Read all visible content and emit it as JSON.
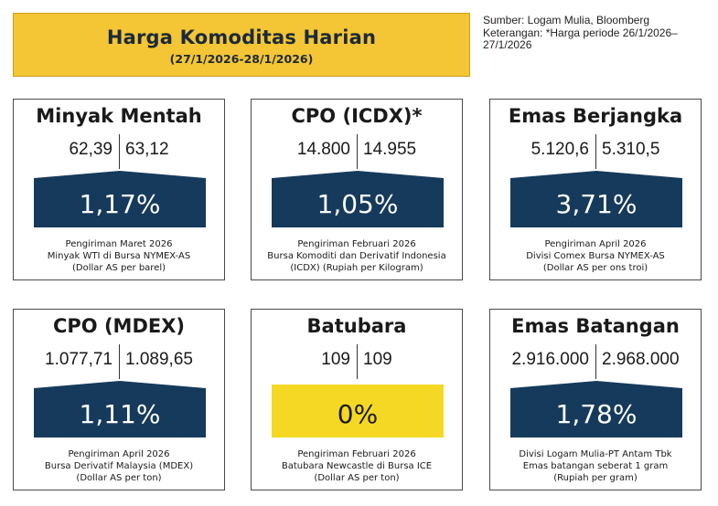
{
  "header": {
    "title": "Harga Komoditas Harian",
    "date_range": "(27/1/2026-28/1/2026)"
  },
  "source": {
    "line1": "Sumber: Logam Mulia, Bloomberg",
    "line2": "Keterangan: *Harga periode 26/1/2026–",
    "line3": "27/1/2026"
  },
  "colors": {
    "title_bg": "#f4c534",
    "badge_navy": "#163a5c",
    "badge_yellow": "#f5d823"
  },
  "cards": [
    {
      "name": "Minyak Mentah",
      "price_prev": "62,39",
      "price_curr": "63,12",
      "change": "1,17%",
      "desc1": "Pengiriman Maret 2026",
      "desc2": "Minyak WTI di Bursa NYMEX-AS",
      "desc3": "(Dollar AS per barel)"
    },
    {
      "name": "CPO (ICDX)*",
      "price_prev": "14.800",
      "price_curr": "14.955",
      "change": "1,05%",
      "desc1": "Pengiriman Februari 2026",
      "desc2": "Bursa Komoditi dan Derivatif Indonesia",
      "desc3": "(ICDX) (Rupiah per Kilogram)"
    },
    {
      "name": "Emas Berjangka",
      "price_prev": "5.120,6",
      "price_curr": "5.310,5",
      "change": "3,71%",
      "desc1": "Pengiriman April 2026",
      "desc2": "Divisi Comex Bursa NYMEX-AS",
      "desc3": "(Dollar AS per ons troi)"
    },
    {
      "name": "CPO (MDEX)",
      "price_prev": "1.077,71",
      "price_curr": "1.089,65",
      "change": "1,11%",
      "desc1": "Pengiriman April 2026",
      "desc2": "Bursa Derivatif Malaysia (MDEX)",
      "desc3": "(Dollar AS per ton)"
    },
    {
      "name": "Batubara",
      "price_prev": "109",
      "price_curr": "109",
      "change": "0%",
      "desc1": "Pengiriman Februari 2026",
      "desc2": "Batubara Newcastle di Bursa ICE",
      "desc3": "(Dollar AS per ton)"
    },
    {
      "name": "Emas Batangan",
      "price_prev": "2.916.000",
      "price_curr": "2.968.000",
      "change": "1,78%",
      "desc1": "Divisi Logam Mulia-PT Antam Tbk",
      "desc2": "Emas batangan seberat 1 gram",
      "desc3": "(Rupiah per gram)"
    }
  ]
}
